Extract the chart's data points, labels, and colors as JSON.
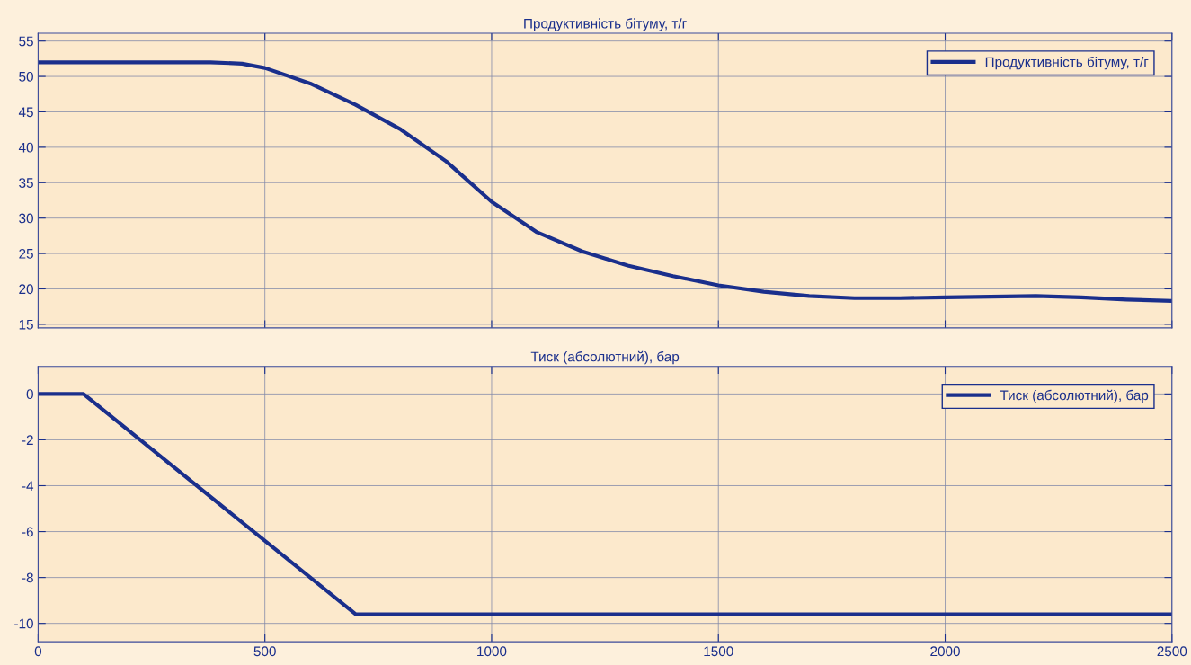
{
  "chart_data": [
    {
      "type": "line",
      "title": "Продуктивність бітуму, т/г",
      "x": [
        0,
        100,
        200,
        300,
        380,
        450,
        500,
        600,
        700,
        800,
        900,
        1000,
        1100,
        1200,
        1300,
        1400,
        1500,
        1600,
        1700,
        1800,
        1900,
        2000,
        2100,
        2200,
        2300,
        2400,
        2500
      ],
      "series": [
        {
          "name": "Продуктивність бітуму, т/г",
          "color": "#1a2f8c",
          "values": [
            52,
            52,
            52,
            52,
            52,
            51.8,
            51.2,
            49,
            46,
            42.5,
            38,
            32.3,
            28,
            25.3,
            23.3,
            21.8,
            20.5,
            19.6,
            19,
            18.7,
            18.7,
            18.8,
            18.9,
            19,
            18.8,
            18.5,
            18.3
          ]
        }
      ],
      "xlim": [
        0,
        2500
      ],
      "xticks": [
        0,
        500,
        1000,
        1500,
        2000,
        2500
      ],
      "ylim": [
        14.5,
        56.1
      ],
      "yticks": [
        15,
        20,
        25,
        30,
        35,
        40,
        45,
        50,
        55
      ],
      "grid": true,
      "legend": "top right",
      "tick_labels": "y",
      "line_style": "solid",
      "marker": "none"
    },
    {
      "type": "line",
      "title": "Тиск (абсолютний), бар",
      "x": [
        0,
        100,
        700,
        2500
      ],
      "series": [
        {
          "name": "Тиск (абсолютний), бар",
          "color": "#1a2f8c",
          "values": [
            0,
            0,
            -9.6,
            -9.6
          ]
        }
      ],
      "xlim": [
        0,
        2500
      ],
      "xticks": [
        0,
        500,
        1000,
        1500,
        2000,
        2500
      ],
      "ylim": [
        -10.8,
        1.2
      ],
      "yticks": [
        -10,
        -8,
        -6,
        -4,
        -2,
        0
      ],
      "grid": true,
      "legend": "top right",
      "line_style": "solid",
      "marker": "none"
    }
  ]
}
